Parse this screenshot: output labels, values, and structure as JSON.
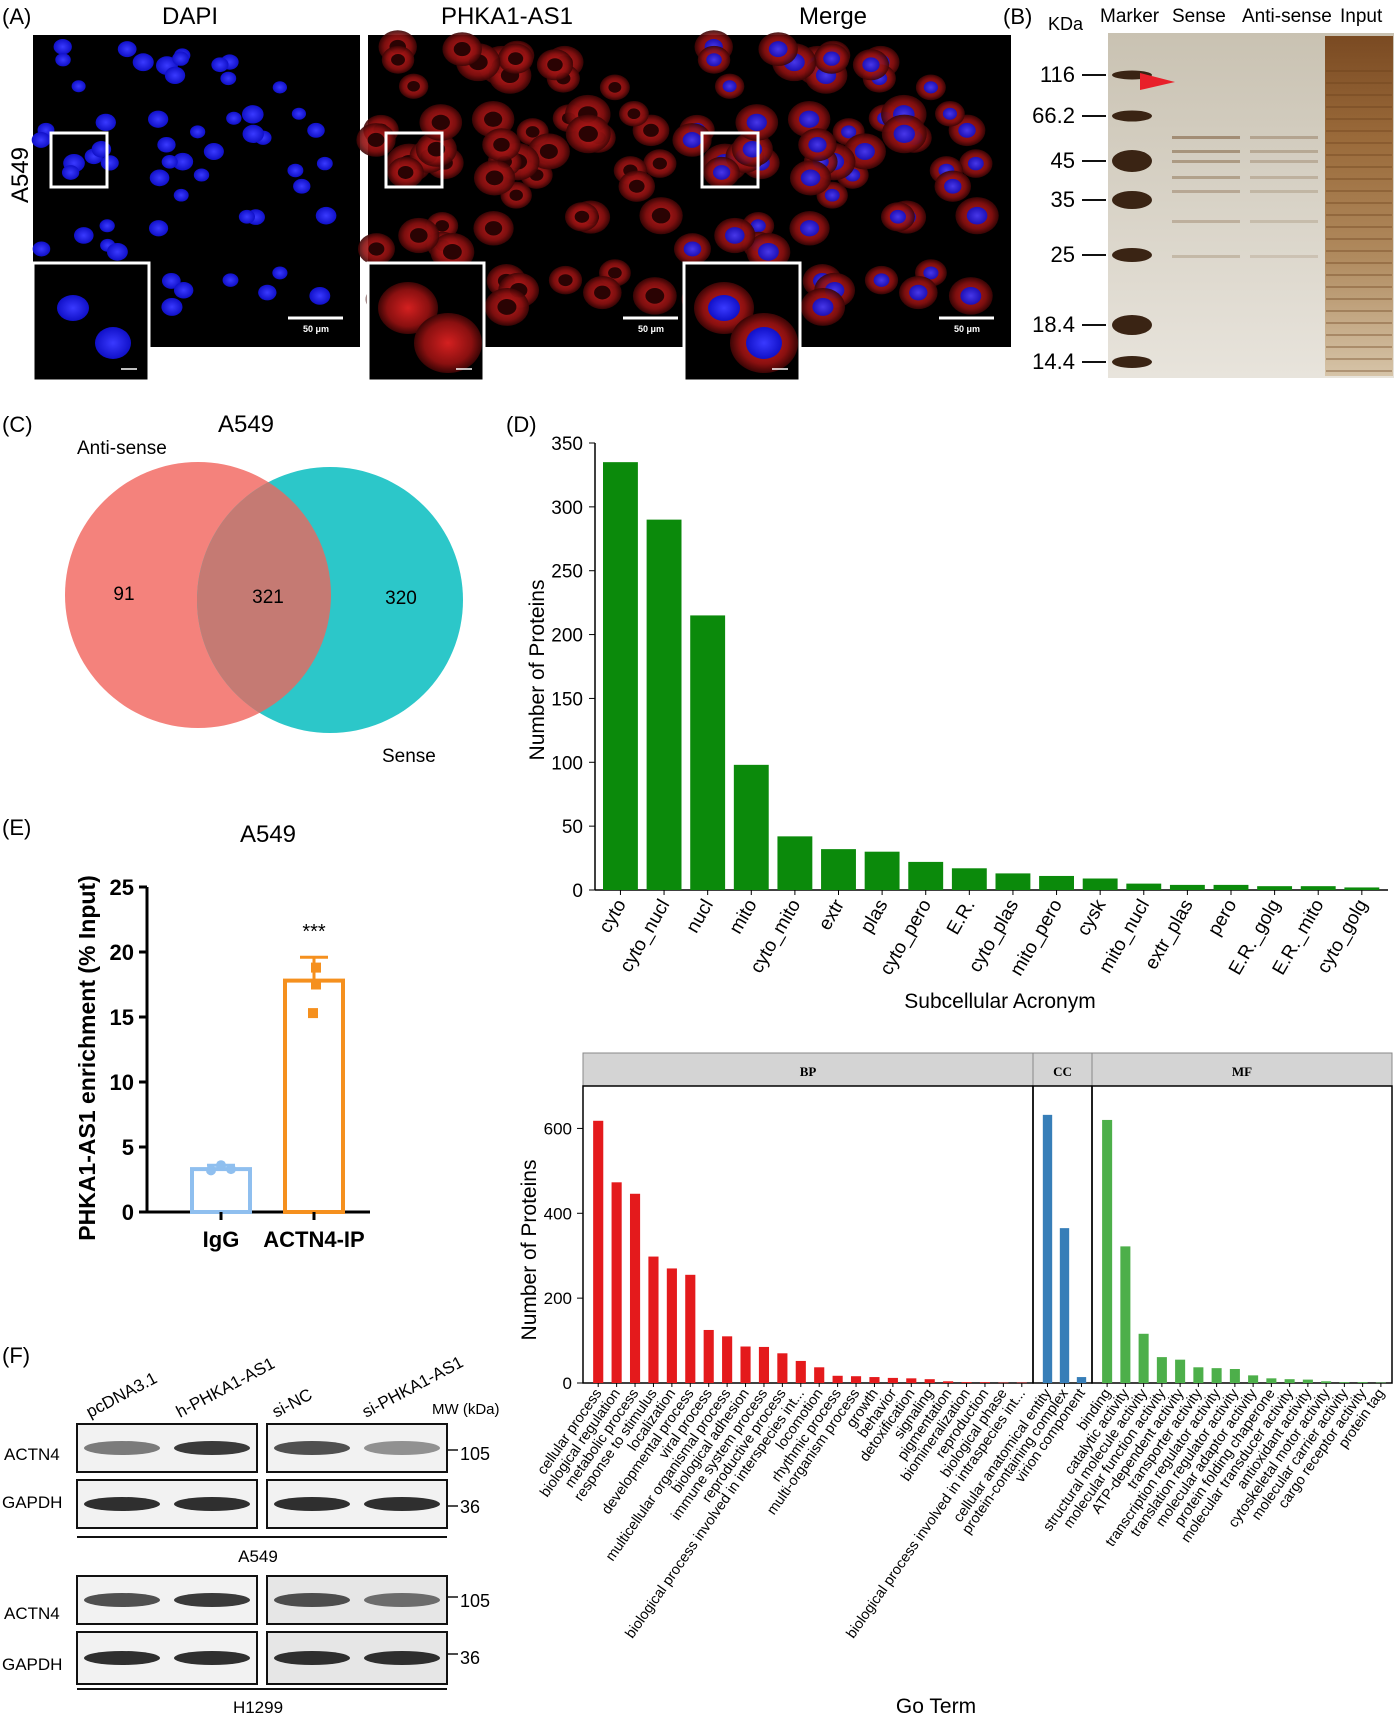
{
  "panel_labels": [
    "(A)",
    "(B)",
    "(C)",
    "(D)",
    "(E)",
    "(F)"
  ],
  "panel_a": {
    "row_label": "A549",
    "columns": [
      "DAPI",
      "PHKA1-AS1",
      "Merge"
    ],
    "scale_bar": "50 μm",
    "colors": {
      "dapi": "#1a1aff",
      "phka": "#e01818",
      "background": "#000000"
    }
  },
  "panel_b": {
    "unit": "KDa",
    "lanes": [
      "Marker",
      "Sense",
      "Anti-sense",
      "Input"
    ],
    "markers": [
      "116",
      "66.2",
      "45",
      "35",
      "25",
      "18.4",
      "14.4"
    ],
    "arrow_color": "#e8202a"
  },
  "panel_c": {
    "title": "A549",
    "set_labels": [
      "Anti-sense",
      "Sense"
    ],
    "counts": [
      "91",
      "321",
      "320"
    ],
    "colors": {
      "anti_sense": "#f4827c",
      "sense": "#2cc7c9"
    }
  },
  "panel_d": {
    "chart_data": {
      "type": "bar",
      "xlabel": "Subcellular Acronym",
      "ylabel": "Number of Proteins",
      "ylim": [
        0,
        350
      ],
      "yticks": [
        "0",
        "50",
        "100",
        "150",
        "200",
        "250",
        "300",
        "350"
      ],
      "categories": [
        "cyto",
        "cyto_nucl",
        "nucl",
        "mito",
        "cyto_mito",
        "extr",
        "plas",
        "cyto_pero",
        "E.R.",
        "cyto_plas",
        "mito_pero",
        "cysk",
        "mito_nucl",
        "extr_plas",
        "pero",
        "E.R._golg",
        "E.R._mito",
        "cyto_golg"
      ],
      "values": [
        335,
        290,
        215,
        98,
        42,
        32,
        30,
        22,
        17,
        13,
        11,
        9,
        5,
        4,
        4,
        3,
        3,
        2
      ],
      "color": "#0b8a0b"
    }
  },
  "panel_e": {
    "chart_data": {
      "type": "bar",
      "title": "A549",
      "ylabel": "PHKA1-AS1 enrichment (% Input)",
      "ylim": [
        0,
        25
      ],
      "yticks": [
        "0",
        "5",
        "10",
        "15",
        "20",
        "25"
      ],
      "categories": [
        "IgG",
        "ACTN4-IP"
      ],
      "values": [
        3.3,
        17.8
      ],
      "errors": [
        0.3,
        1.8
      ],
      "points": [
        [
          3.2,
          3.6,
          3.3
        ],
        [
          18.8,
          15.3,
          17.5
        ]
      ],
      "colors": [
        "#8fbfef",
        "#f5901e"
      ],
      "annotation": "***"
    }
  },
  "panel_go": {
    "chart_data": {
      "type": "bar",
      "xlabel": "Go Term",
      "ylabel": "Number of Proteins",
      "ylim": [
        0,
        700
      ],
      "yticks": [
        "0",
        "200",
        "400",
        "600"
      ],
      "facets": [
        {
          "name": "BP",
          "color": "#e41a1c",
          "categories": [
            "cellular process",
            "biological regulation",
            "metabolic process",
            "response to stimulus",
            "localization",
            "developmental process",
            "viral process",
            "multicellular organismal process",
            "biological adhesion",
            "immune system process",
            "reproductive process",
            "biological process involved in interspecies int...",
            "locomotion",
            "rhythmic process",
            "multi-organism process",
            "growth",
            "behavior",
            "detoxification",
            "signaling",
            "pigmentation",
            "biomineralization",
            "reproduction",
            "biological phase",
            "biological process involved in intraspecies int..."
          ],
          "values": [
            618,
            473,
            446,
            298,
            270,
            255,
            125,
            110,
            86,
            85,
            70,
            52,
            37,
            17,
            16,
            14,
            12,
            11,
            9,
            4,
            2,
            2,
            1,
            1
          ]
        },
        {
          "name": "CC",
          "color": "#377eb8",
          "categories": [
            "cellular anatomical entity",
            "protein-containing complex",
            "virion component"
          ],
          "values": [
            632,
            365,
            14
          ]
        },
        {
          "name": "MF",
          "color": "#4daf4a",
          "categories": [
            "binding",
            "catalytic activity",
            "structural molecule activity",
            "molecular function activity",
            "ATP-dependent activity",
            "transporter activity",
            "transcription regulator activity",
            "translation regulator activity",
            "molecular adaptor activity",
            "protein folding chaperone",
            "molecular transducer activity",
            "antioxidant activity",
            "cytoskeletal motor activity",
            "molecular carrier activity",
            "cargo receptor activity",
            "protein tag"
          ],
          "values": [
            620,
            322,
            116,
            61,
            55,
            37,
            35,
            33,
            18,
            11,
            9,
            8,
            4,
            2,
            2,
            1
          ]
        }
      ]
    }
  },
  "panel_f": {
    "lanes_left": [
      "pcDNA3.1",
      "h-PHKA1-AS1"
    ],
    "lanes_right": [
      "si-NC",
      "si-PHKA1-AS1"
    ],
    "mw_label": "MW (kDa)",
    "proteins": [
      "ACTN4",
      "GAPDH"
    ],
    "mw": [
      "105",
      "36"
    ],
    "cell_lines": [
      "A549",
      "H1299"
    ]
  }
}
